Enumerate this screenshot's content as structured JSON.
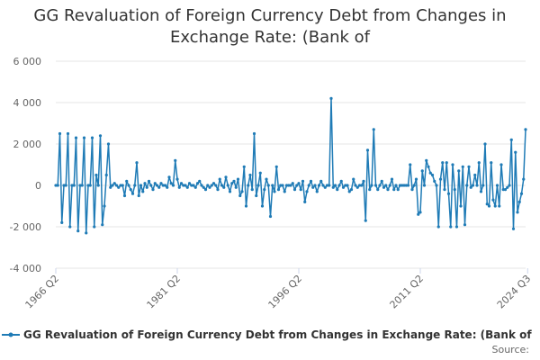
{
  "title_line1": "GG Revaluation of Foreign Currency Debt from Changes in",
  "title_line2": "Exchange Rate: (Bank of",
  "source_label": "Source:",
  "series_color": "#1f7bb6",
  "chart_data": {
    "type": "line",
    "title": "GG Revaluation of Foreign Currency Debt from Changes in Exchange Rate: (Bank of",
    "xlabel": "",
    "ylabel": "",
    "ylim": [
      -4000,
      6000
    ],
    "y_ticks": [
      6000,
      4000,
      2000,
      0,
      -2000,
      -4000
    ],
    "y_tick_labels": [
      "6 000",
      "4 000",
      "2 000",
      "0",
      "-2 000",
      "-4 000"
    ],
    "x_ticks": [
      {
        "label": "1966 Q2",
        "index": 0
      },
      {
        "label": "1981 Q2",
        "index": 60
      },
      {
        "label": "1996 Q2",
        "index": 120
      },
      {
        "label": "2011 Q2",
        "index": 180
      },
      {
        "label": "2024 Q3",
        "index": 233
      }
    ],
    "x_start": "1966 Q2",
    "x_end": "2024 Q3",
    "grid": true,
    "legend": "bottom",
    "series": [
      {
        "name": "GG Revaluation of Foreign Currency Debt from Changes in Exchange Rate: (Bank of",
        "values": [
          0,
          0,
          2500,
          -1800,
          0,
          0,
          2500,
          -2000,
          0,
          0,
          2300,
          -2200,
          0,
          0,
          2300,
          -2300,
          0,
          0,
          2300,
          -2000,
          500,
          0,
          2400,
          -1900,
          -1000,
          500,
          2000,
          -100,
          0,
          100,
          0,
          -100,
          0,
          0,
          -500,
          200,
          0,
          -200,
          -400,
          0,
          1100,
          -500,
          0,
          -300,
          100,
          -100,
          200,
          0,
          -200,
          100,
          0,
          -100,
          100,
          0,
          0,
          -100,
          400,
          100,
          0,
          1200,
          300,
          -100,
          100,
          0,
          0,
          -100,
          100,
          0,
          0,
          -100,
          100,
          200,
          0,
          -100,
          -200,
          0,
          -100,
          0,
          100,
          0,
          -200,
          300,
          0,
          -100,
          400,
          0,
          -300,
          100,
          200,
          -100,
          300,
          -500,
          -300,
          900,
          -1000,
          0,
          500,
          -200,
          2500,
          -500,
          0,
          600,
          -1000,
          -200,
          300,
          0,
          -1500,
          0,
          -300,
          900,
          -200,
          0,
          0,
          -300,
          0,
          0,
          0,
          100,
          -200,
          0,
          100,
          -200,
          200,
          -800,
          -300,
          0,
          200,
          -100,
          0,
          -300,
          0,
          200,
          0,
          -100,
          0,
          0,
          4200,
          -100,
          0,
          -200,
          0,
          200,
          -100,
          0,
          0,
          -300,
          -200,
          300,
          0,
          -100,
          0,
          0,
          200,
          -1700,
          1700,
          -200,
          0,
          2700,
          0,
          -200,
          0,
          200,
          -100,
          0,
          -200,
          0,
          300,
          -200,
          0,
          -200,
          0,
          0,
          0,
          0,
          0,
          1000,
          -200,
          0,
          300,
          -1400,
          -1300,
          700,
          0,
          1200,
          900,
          600,
          500,
          200,
          0,
          -2000,
          300,
          1100,
          -200,
          1100,
          -400,
          -2000,
          1000,
          -200,
          -2000,
          700,
          -1000,
          900,
          -1900,
          0,
          900,
          -100,
          0,
          500,
          0,
          1100,
          -300,
          0,
          2000,
          -900,
          -1000,
          1100,
          -700,
          -1000,
          0,
          -1000,
          1000,
          -200,
          -200,
          -100,
          0,
          2200,
          -2100,
          1600,
          -1300,
          -800,
          -400,
          300,
          2700
        ]
      }
    ]
  }
}
